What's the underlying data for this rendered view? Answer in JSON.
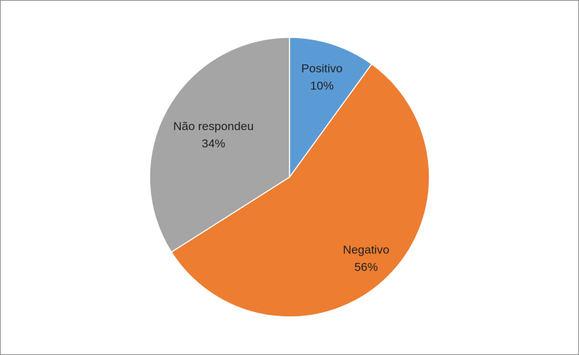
{
  "chart_data": {
    "type": "pie",
    "categories": [
      "Positivo",
      "Negativo",
      "Não respondeu"
    ],
    "values": [
      10,
      56,
      34
    ],
    "value_labels": [
      "10%",
      "56%",
      "34%"
    ],
    "colors": [
      "#5b9bd5",
      "#ed7d31",
      "#a5a5a5"
    ]
  }
}
